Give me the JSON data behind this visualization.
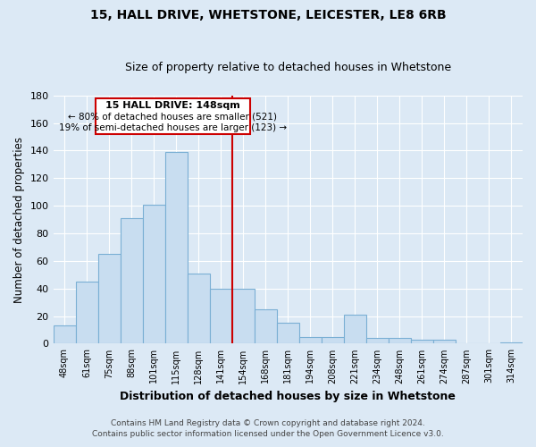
{
  "title": "15, HALL DRIVE, WHETSTONE, LEICESTER, LE8 6RB",
  "subtitle": "Size of property relative to detached houses in Whetstone",
  "xlabel": "Distribution of detached houses by size in Whetstone",
  "ylabel": "Number of detached properties",
  "bar_labels": [
    "48sqm",
    "61sqm",
    "75sqm",
    "88sqm",
    "101sqm",
    "115sqm",
    "128sqm",
    "141sqm",
    "154sqm",
    "168sqm",
    "181sqm",
    "194sqm",
    "208sqm",
    "221sqm",
    "234sqm",
    "248sqm",
    "261sqm",
    "274sqm",
    "287sqm",
    "301sqm",
    "314sqm"
  ],
  "bar_values": [
    13,
    45,
    65,
    91,
    101,
    139,
    51,
    40,
    40,
    25,
    15,
    5,
    5,
    21,
    4,
    4,
    3,
    3,
    0,
    0,
    1
  ],
  "bar_color": "#c8ddf0",
  "bar_edge_color": "#7aafd4",
  "ylim": [
    0,
    180
  ],
  "yticks": [
    0,
    20,
    40,
    60,
    80,
    100,
    120,
    140,
    160,
    180
  ],
  "vline_color": "#cc0000",
  "annotation_title": "15 HALL DRIVE: 148sqm",
  "annotation_line1": "← 80% of detached houses are smaller (521)",
  "annotation_line2": "19% of semi-detached houses are larger (123) →",
  "annotation_box_color": "#ffffff",
  "annotation_box_edge": "#cc0000",
  "footer1": "Contains HM Land Registry data © Crown copyright and database right 2024.",
  "footer2": "Contains public sector information licensed under the Open Government Licence v3.0.",
  "background_color": "#dce9f5",
  "plot_bg_color": "#dce9f5",
  "grid_color": "#ffffff"
}
